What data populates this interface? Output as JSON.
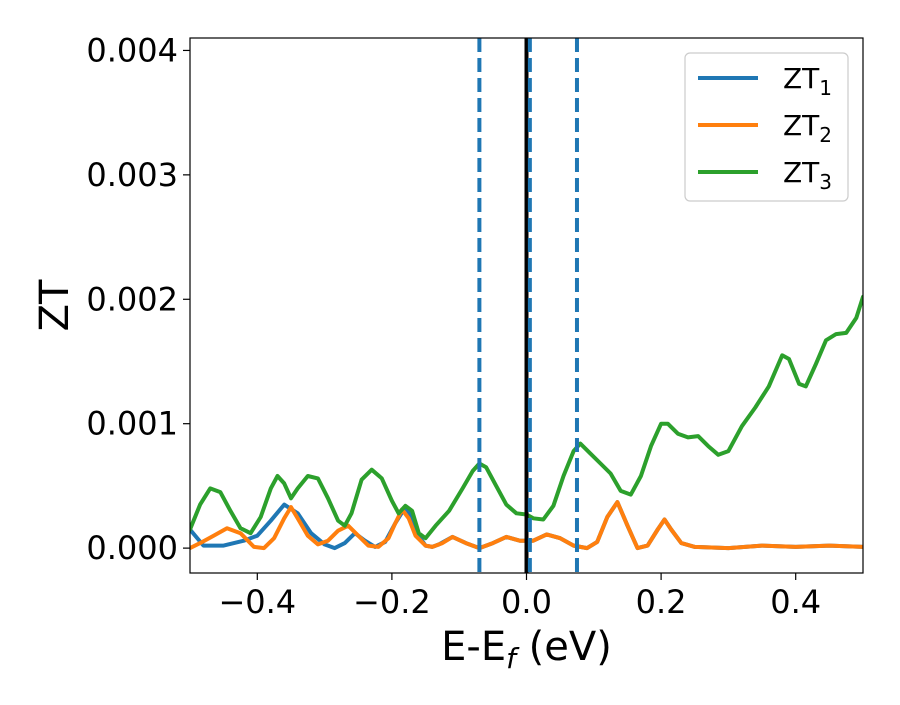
{
  "chart_data": {
    "type": "line",
    "title": "",
    "xlabel": {
      "base": "E-E",
      "subscript": "f",
      "suffix": " (eV)"
    },
    "ylabel": "ZT",
    "xlim": [
      -0.5,
      0.5
    ],
    "ylim": [
      -0.0002,
      0.0041
    ],
    "x_ticks": [
      -0.4,
      -0.2,
      0.0,
      0.2,
      0.4
    ],
    "x_tick_labels": [
      "−0.4",
      "−0.2",
      "0.0",
      "0.2",
      "0.4"
    ],
    "y_ticks": [
      0.0,
      0.001,
      0.002,
      0.003,
      0.004
    ],
    "y_tick_labels": [
      "0.000",
      "0.001",
      "0.002",
      "0.003",
      "0.004"
    ],
    "grid": false,
    "legend_position": "top-right",
    "vertical_lines": [
      {
        "x": -0.07,
        "color": "#1f77b4",
        "style": "dashed"
      },
      {
        "x": 0.0,
        "color": "#000000",
        "style": "solid"
      },
      {
        "x": 0.005,
        "color": "#1f77b4",
        "style": "dashed"
      },
      {
        "x": 0.075,
        "color": "#1f77b4",
        "style": "dashed"
      }
    ],
    "series": [
      {
        "name": {
          "base": "ZT",
          "subscript": "1"
        },
        "color": "#1f77b4",
        "points": [
          [
            -0.5,
            0.00015
          ],
          [
            -0.48,
            2e-05
          ],
          [
            -0.45,
            2e-05
          ],
          [
            -0.42,
            6e-05
          ],
          [
            -0.4,
            0.0001
          ],
          [
            -0.38,
            0.00022
          ],
          [
            -0.36,
            0.00035
          ],
          [
            -0.34,
            0.00028
          ],
          [
            -0.32,
            0.00012
          ],
          [
            -0.3,
            3e-05
          ],
          [
            -0.285,
            0.0
          ],
          [
            -0.27,
            4e-05
          ],
          [
            -0.255,
            0.00012
          ],
          [
            -0.24,
            6e-05
          ],
          [
            -0.225,
            1e-05
          ],
          [
            -0.21,
            5e-05
          ],
          [
            -0.195,
            0.0002
          ],
          [
            -0.18,
            0.00033
          ],
          [
            -0.17,
            0.00025
          ],
          [
            -0.16,
            0.0001
          ],
          [
            -0.15,
            2e-05
          ],
          [
            -0.14,
            1e-05
          ],
          [
            -0.13,
            3e-05
          ],
          [
            -0.11,
            9e-05
          ],
          [
            -0.09,
            4e-05
          ],
          [
            -0.07,
            0.0
          ],
          [
            -0.05,
            4e-05
          ],
          [
            -0.03,
            9e-05
          ],
          [
            -0.01,
            6e-05
          ],
          [
            0.01,
            6e-05
          ],
          [
            0.03,
            0.00011
          ],
          [
            0.05,
            8e-05
          ],
          [
            0.07,
            2e-05
          ],
          [
            0.09,
            0.0
          ],
          [
            0.105,
            5e-05
          ],
          [
            0.12,
            0.00025
          ],
          [
            0.135,
            0.00037
          ],
          [
            0.15,
            0.00018
          ],
          [
            0.165,
            0.0
          ],
          [
            0.18,
            2e-05
          ],
          [
            0.195,
            0.00015
          ],
          [
            0.205,
            0.00023
          ],
          [
            0.215,
            0.00015
          ],
          [
            0.23,
            4e-05
          ],
          [
            0.25,
            1e-05
          ],
          [
            0.3,
            0.0
          ],
          [
            0.35,
            2e-05
          ],
          [
            0.4,
            1e-05
          ],
          [
            0.45,
            2e-05
          ],
          [
            0.5,
            1e-05
          ]
        ]
      },
      {
        "name": {
          "base": "ZT",
          "subscript": "2"
        },
        "color": "#ff7f0e",
        "points": [
          [
            -0.5,
            0.0
          ],
          [
            -0.485,
            4e-05
          ],
          [
            -0.465,
            0.0001
          ],
          [
            -0.445,
            0.00016
          ],
          [
            -0.425,
            0.00012
          ],
          [
            -0.405,
            1e-05
          ],
          [
            -0.39,
            0.0
          ],
          [
            -0.375,
            8e-05
          ],
          [
            -0.36,
            0.00024
          ],
          [
            -0.35,
            0.00033
          ],
          [
            -0.34,
            0.00024
          ],
          [
            -0.325,
            0.0001
          ],
          [
            -0.31,
            3e-05
          ],
          [
            -0.295,
            6e-05
          ],
          [
            -0.28,
            0.00014
          ],
          [
            -0.265,
            0.00018
          ],
          [
            -0.25,
            0.0001
          ],
          [
            -0.235,
            2e-05
          ],
          [
            -0.22,
            1e-05
          ],
          [
            -0.205,
            8e-05
          ],
          [
            -0.195,
            0.0002
          ],
          [
            -0.185,
            0.00031
          ],
          [
            -0.175,
            0.00024
          ],
          [
            -0.165,
            0.0001
          ],
          [
            -0.15,
            2e-05
          ],
          [
            -0.14,
            1e-05
          ],
          [
            -0.125,
            4e-05
          ],
          [
            -0.11,
            9e-05
          ],
          [
            -0.09,
            4e-05
          ],
          [
            -0.07,
            0.0
          ],
          [
            -0.05,
            4e-05
          ],
          [
            -0.03,
            9e-05
          ],
          [
            -0.01,
            6e-05
          ],
          [
            0.01,
            6e-05
          ],
          [
            0.03,
            0.00011
          ],
          [
            0.05,
            8e-05
          ],
          [
            0.07,
            2e-05
          ],
          [
            0.09,
            0.0
          ],
          [
            0.105,
            5e-05
          ],
          [
            0.12,
            0.00025
          ],
          [
            0.135,
            0.00037
          ],
          [
            0.15,
            0.00018
          ],
          [
            0.165,
            0.0
          ],
          [
            0.18,
            2e-05
          ],
          [
            0.195,
            0.00015
          ],
          [
            0.205,
            0.00023
          ],
          [
            0.215,
            0.00015
          ],
          [
            0.23,
            4e-05
          ],
          [
            0.25,
            1e-05
          ],
          [
            0.3,
            0.0
          ],
          [
            0.35,
            2e-05
          ],
          [
            0.4,
            1e-05
          ],
          [
            0.45,
            2e-05
          ],
          [
            0.5,
            1e-05
          ]
        ]
      },
      {
        "name": {
          "base": "ZT",
          "subscript": "3"
        },
        "color": "#2ca02c",
        "points": [
          [
            -0.5,
            0.00015
          ],
          [
            -0.485,
            0.00035
          ],
          [
            -0.47,
            0.00048
          ],
          [
            -0.455,
            0.00045
          ],
          [
            -0.44,
            0.0003
          ],
          [
            -0.425,
            0.00016
          ],
          [
            -0.41,
            0.00012
          ],
          [
            -0.395,
            0.00025
          ],
          [
            -0.38,
            0.00048
          ],
          [
            -0.37,
            0.00058
          ],
          [
            -0.36,
            0.00052
          ],
          [
            -0.35,
            0.0004
          ],
          [
            -0.34,
            0.00048
          ],
          [
            -0.325,
            0.00058
          ],
          [
            -0.31,
            0.00056
          ],
          [
            -0.295,
            0.0004
          ],
          [
            -0.28,
            0.00022
          ],
          [
            -0.27,
            0.00018
          ],
          [
            -0.26,
            0.00028
          ],
          [
            -0.245,
            0.00055
          ],
          [
            -0.23,
            0.00063
          ],
          [
            -0.215,
            0.00056
          ],
          [
            -0.2,
            0.00038
          ],
          [
            -0.19,
            0.00028
          ],
          [
            -0.18,
            0.00034
          ],
          [
            -0.17,
            0.0003
          ],
          [
            -0.16,
            0.00012
          ],
          [
            -0.15,
            8e-05
          ],
          [
            -0.135,
            0.00018
          ],
          [
            -0.115,
            0.0003
          ],
          [
            -0.095,
            0.00048
          ],
          [
            -0.08,
            0.00062
          ],
          [
            -0.07,
            0.00068
          ],
          [
            -0.06,
            0.00065
          ],
          [
            -0.045,
            0.0005
          ],
          [
            -0.03,
            0.00035
          ],
          [
            -0.015,
            0.00028
          ],
          [
            0.0,
            0.00027
          ],
          [
            0.01,
            0.00024
          ],
          [
            0.025,
            0.00023
          ],
          [
            0.04,
            0.00034
          ],
          [
            0.055,
            0.00058
          ],
          [
            0.07,
            0.00078
          ],
          [
            0.08,
            0.00084
          ],
          [
            0.095,
            0.00076
          ],
          [
            0.11,
            0.00068
          ],
          [
            0.125,
            0.0006
          ],
          [
            0.14,
            0.00046
          ],
          [
            0.155,
            0.00043
          ],
          [
            0.17,
            0.00058
          ],
          [
            0.185,
            0.00082
          ],
          [
            0.2,
            0.001
          ],
          [
            0.21,
            0.001
          ],
          [
            0.225,
            0.00092
          ],
          [
            0.24,
            0.00089
          ],
          [
            0.255,
            0.0009
          ],
          [
            0.27,
            0.00082
          ],
          [
            0.285,
            0.00075
          ],
          [
            0.3,
            0.00078
          ],
          [
            0.32,
            0.00098
          ],
          [
            0.34,
            0.00113
          ],
          [
            0.36,
            0.0013
          ],
          [
            0.38,
            0.00155
          ],
          [
            0.39,
            0.00152
          ],
          [
            0.405,
            0.00132
          ],
          [
            0.415,
            0.0013
          ],
          [
            0.43,
            0.00148
          ],
          [
            0.445,
            0.00167
          ],
          [
            0.46,
            0.00172
          ],
          [
            0.475,
            0.00173
          ],
          [
            0.49,
            0.00185
          ],
          [
            0.5,
            0.00202
          ]
        ]
      }
    ]
  }
}
